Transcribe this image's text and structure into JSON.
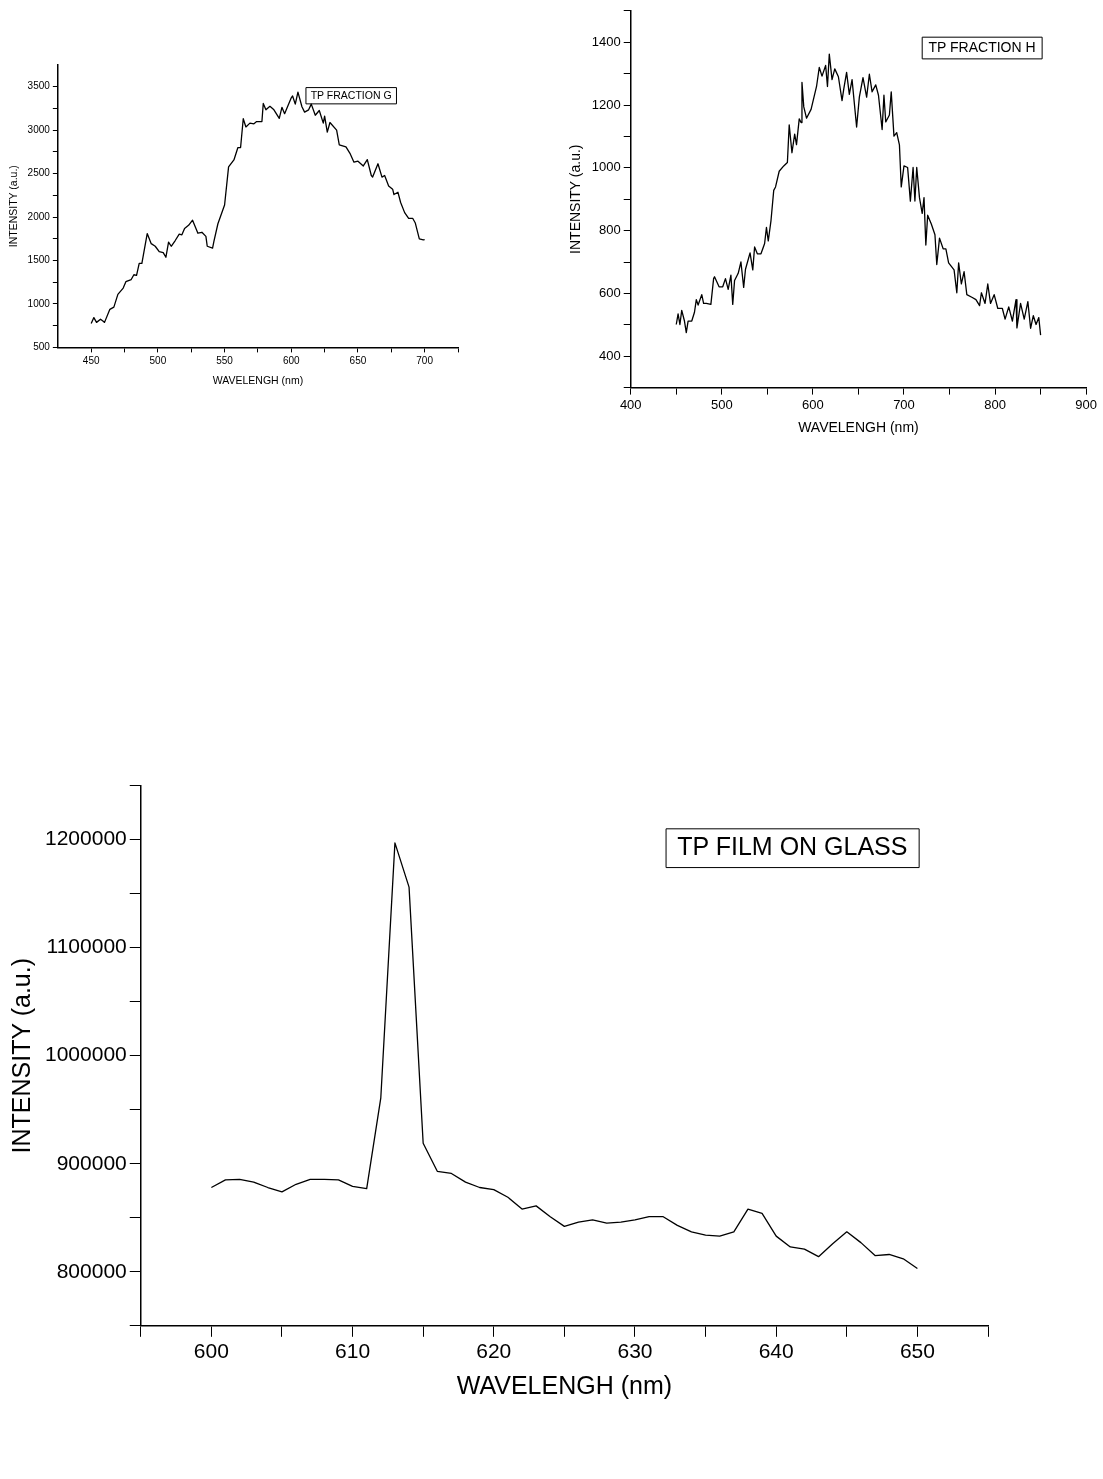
{
  "chart_data": [
    {
      "type": "line",
      "title": "TP FRACTION G",
      "xlabel": "WAVELENGH (nm)",
      "ylabel": "INTENSITY (a.u.)",
      "xlim": [
        425,
        725
      ],
      "ylim": [
        500,
        3750
      ],
      "xticks": [
        450,
        {
          "value": 475,
          "label": null
        },
        500,
        {
          "value": 525,
          "label": null
        },
        550,
        {
          "value": 575,
          "label": null
        },
        600,
        {
          "value": 625,
          "label": null
        },
        650,
        {
          "value": 675,
          "label": null
        },
        700,
        {
          "value": 725,
          "label": null
        }
      ],
      "yticks": [
        500,
        {
          "value": 750,
          "label": null
        },
        1000,
        {
          "value": 1250,
          "label": null
        },
        1500,
        {
          "value": 1750,
          "label": null
        },
        2000,
        {
          "value": 2250,
          "label": null
        },
        2500,
        {
          "value": 2750,
          "label": null
        },
        3000,
        {
          "value": 3250,
          "label": null
        },
        3500
      ],
      "series": [
        {
          "color": "#000000",
          "x": [
            450,
            452,
            454,
            457,
            459,
            460,
            464,
            467,
            470,
            474,
            476,
            480,
            482,
            484,
            486,
            488,
            492,
            495,
            498,
            501,
            504,
            506,
            508,
            510,
            513,
            516,
            518,
            520,
            523,
            526,
            530,
            533,
            536,
            537,
            541,
            542,
            545,
            550,
            553,
            557,
            560,
            562,
            564,
            566,
            569,
            572,
            574,
            576,
            578,
            579,
            581,
            584,
            587,
            591,
            593,
            595,
            600,
            601,
            603,
            605,
            608,
            610,
            613,
            615,
            618,
            621,
            624,
            625,
            627,
            629,
            634,
            636,
            641,
            644,
            647,
            650,
            654,
            657,
            660,
            661,
            665,
            668,
            670,
            673,
            676,
            677,
            680,
            682,
            685,
            688,
            691,
            693,
            696,
            699,
            700
          ],
          "values": [
            774,
            843,
            788,
            825,
            800,
            788,
            938,
            964,
            1110,
            1183,
            1256,
            1281,
            1336,
            1329,
            1467,
            1467,
            1810,
            1694,
            1664,
            1602,
            1591,
            1537,
            1712,
            1664,
            1730,
            1803,
            1796,
            1869,
            1905,
            1964,
            1814,
            1825,
            1778,
            1664,
            1642,
            1719,
            1923,
            2139,
            2577,
            2657,
            2800,
            2800,
            3132,
            3037,
            3081,
            3073,
            3099,
            3099,
            3099,
            3307,
            3234,
            3274,
            3234,
            3135,
            3263,
            3190,
            3372,
            3394,
            3300,
            3438,
            3270,
            3208,
            3234,
            3300,
            3172,
            3226,
            3081,
            3161,
            2978,
            3088,
            3000,
            2832,
            2807,
            2734,
            2632,
            2643,
            2588,
            2661,
            2478,
            2460,
            2613,
            2460,
            2478,
            2358,
            2321,
            2259,
            2285,
            2168,
            2051,
            1986,
            1986,
            1931,
            1748,
            1737,
            1740
          ]
        }
      ]
    },
    {
      "type": "line",
      "title": "TP FRACTION H",
      "xlabel": "WAVELENGH (nm)",
      "ylabel": "INTENSITY (a.u.)",
      "xlim": [
        400,
        900
      ],
      "ylim": [
        300,
        1500
      ],
      "xticks": [
        400,
        {
          "value": 450,
          "label": null
        },
        500,
        {
          "value": 550,
          "label": null
        },
        600,
        {
          "value": 650,
          "label": null
        },
        700,
        {
          "value": 750,
          "label": null
        },
        800,
        {
          "value": 850,
          "label": null
        },
        900
      ],
      "yticks": [
        {
          "value": 300,
          "label": null
        },
        400,
        {
          "value": 500,
          "label": null
        },
        600,
        {
          "value": 700,
          "label": null
        },
        800,
        {
          "value": 900,
          "label": null
        },
        1000,
        {
          "value": 1100,
          "label": null
        },
        1200,
        {
          "value": 1300,
          "label": null
        },
        1400,
        {
          "value": 1500,
          "label": null
        }
      ],
      "series": [
        {
          "color": "#000000",
          "x": [
            450,
            452,
            454,
            456,
            459,
            461,
            463,
            467,
            470,
            472,
            474,
            478,
            480,
            483,
            488,
            491,
            492,
            497,
            501,
            504,
            507,
            510,
            512,
            514,
            518,
            521,
            524,
            526,
            531,
            534,
            536,
            539,
            543,
            547,
            549,
            551,
            554,
            557,
            559,
            563,
            568,
            572,
            574,
            577,
            580,
            582,
            585,
            587,
            588,
            590,
            593,
            598,
            604,
            607,
            610,
            614,
            616,
            618,
            621,
            624,
            628,
            632,
            634,
            637,
            640,
            643,
            648,
            651,
            655,
            659,
            662,
            665,
            669,
            672,
            676,
            678,
            680,
            684,
            686,
            689,
            692,
            695,
            697,
            700,
            704,
            707,
            710,
            712,
            714,
            717,
            720,
            722,
            724,
            726,
            730,
            734,
            736,
            739,
            743,
            746,
            749,
            755,
            758,
            760,
            763,
            766,
            769,
            775,
            779,
            783,
            785,
            789,
            792,
            795,
            799,
            803,
            808,
            811,
            815,
            819,
            823,
            824,
            828,
            832,
            836,
            839,
            842,
            845,
            848,
            850
          ],
          "values": [
            501,
            535,
            501,
            546,
            512,
            475,
            512,
            512,
            540,
            580,
            563,
            596,
            568,
            568,
            565,
            647,
            653,
            621,
            621,
            647,
            613,
            658,
            565,
            641,
            664,
            700,
            619,
            677,
            729,
            675,
            748,
            726,
            726,
            759,
            810,
            767,
            832,
            928,
            939,
            989,
            1006,
            1017,
            1137,
            1048,
            1107,
            1074,
            1156,
            1144,
            1272,
            1194,
            1158,
            1186,
            1259,
            1320,
            1292,
            1326,
            1259,
            1362,
            1281,
            1315,
            1290,
            1214,
            1253,
            1304,
            1234,
            1281,
            1130,
            1225,
            1287,
            1225,
            1298,
            1242,
            1264,
            1231,
            1122,
            1231,
            1146,
            1168,
            1242,
            1101,
            1112,
            1073,
            939,
            1006,
            1001,
            894,
            1001,
            894,
            1001,
            905,
            855,
            905,
            754,
            849,
            821,
            787,
            692,
            776,
            742,
            742,
            697,
            675,
            602,
            697,
            630,
            669,
            596,
            587,
            580,
            561,
            602,
            568,
            630,
            568,
            596,
            552,
            552,
            518,
            557,
            512,
            580,
            490,
            568,
            518,
            574,
            489,
            529,
            501,
            523,
            467
          ]
        }
      ]
    },
    {
      "type": "line",
      "title": "TP FILM ON GLASS",
      "xlabel": "WAVELENGH (nm)",
      "ylabel": "INTENSITY (a.u.)",
      "xlim": [
        595,
        655
      ],
      "ylim": [
        750000,
        1250000
      ],
      "xticks": [
        {
          "value": 595,
          "label": null
        },
        600,
        {
          "value": 605,
          "label": null
        },
        610,
        {
          "value": 615,
          "label": null
        },
        620,
        {
          "value": 625,
          "label": null
        },
        630,
        {
          "value": 635,
          "label": null
        },
        640,
        {
          "value": 645,
          "label": null
        },
        650,
        {
          "value": 655,
          "label": null
        }
      ],
      "yticks": [
        {
          "value": 750000,
          "label": null
        },
        800000,
        {
          "value": 850000,
          "label": null
        },
        900000,
        {
          "value": 950000,
          "label": null
        },
        1000000,
        {
          "value": 1050000,
          "label": null
        },
        1100000,
        {
          "value": 1150000,
          "label": null
        },
        1200000,
        {
          "value": 1250000,
          "label": null
        }
      ],
      "series": [
        {
          "color": "#000000",
          "x": [
            600,
            601,
            602,
            603,
            604,
            605,
            606,
            607,
            608,
            609,
            610,
            611,
            612,
            613,
            614,
            615,
            616,
            617,
            618,
            619,
            620,
            621,
            622,
            623,
            624,
            625,
            626,
            627,
            628,
            629,
            630,
            631,
            632,
            633,
            634,
            635,
            636,
            637,
            638,
            639,
            640,
            641,
            642,
            643,
            644,
            645,
            646,
            647,
            648,
            649,
            650
          ],
          "values": [
            878000,
            885000,
            885500,
            883000,
            878000,
            874000,
            881000,
            885500,
            885500,
            885000,
            879000,
            877000,
            961000,
            1197000,
            1156000,
            919000,
            893000,
            891000,
            883000,
            878000,
            876000,
            869000,
            858000,
            861000,
            851000,
            842000,
            846000,
            848000,
            845000,
            846000,
            848000,
            851000,
            851000,
            843000,
            837000,
            834000,
            833000,
            837000,
            858000,
            854000,
            833000,
            823000,
            821000,
            814000,
            826000,
            837000,
            827000,
            815000,
            816000,
            812000,
            803000
          ]
        }
      ]
    }
  ]
}
